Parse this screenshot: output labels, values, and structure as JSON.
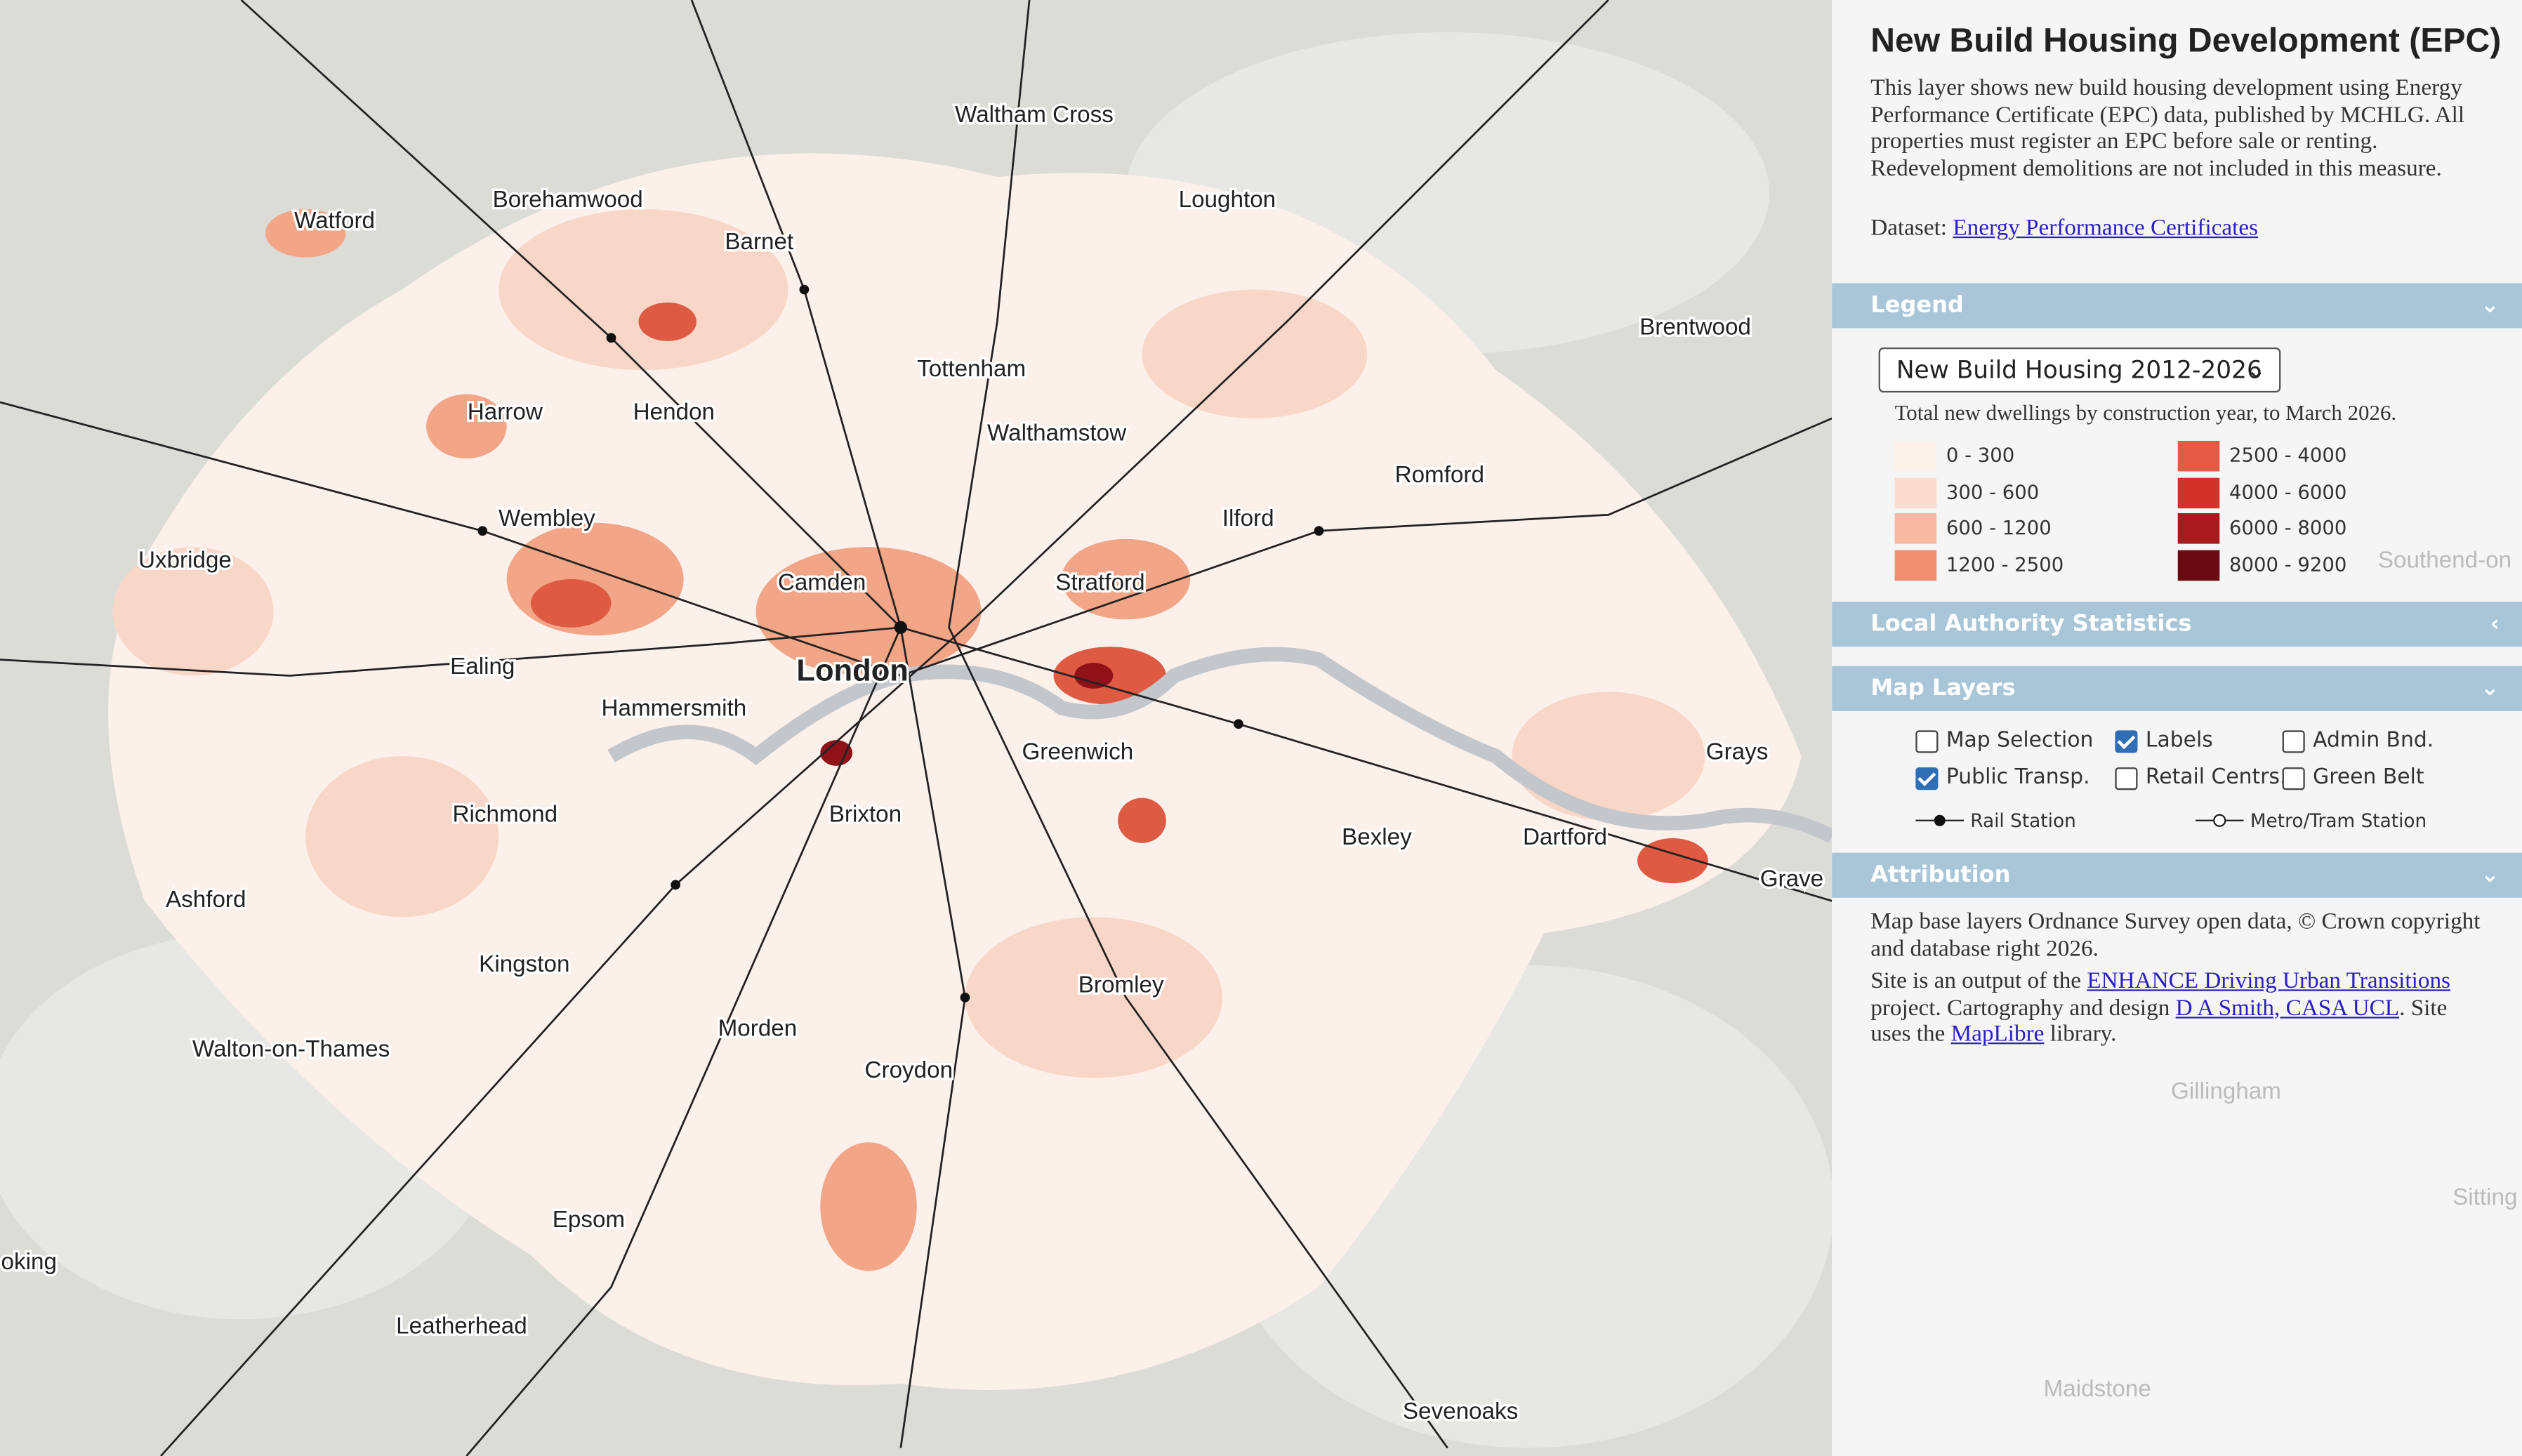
{
  "header": {
    "title": "New Build Housing Development (EPC)",
    "description": "This layer shows new build housing development using Energy Performance Certificate (EPC) data, published by MCHLG. All properties must register an EPC before sale or renting. Redevelopment demolitions are not included in this measure.",
    "dataset_label": "Dataset:",
    "dataset_link": "Energy Performance Certificates"
  },
  "sections": {
    "legend": "Legend",
    "local_authority": "Local Authority Statistics",
    "map_layers": "Map Layers",
    "attribution": "Attribution"
  },
  "legend": {
    "selected": "New Build Housing 2012-2026",
    "subtitle": "Total new dwellings by construction year, to March 2026.",
    "classes": [
      {
        "label": "0 - 300",
        "color": "#fdf1ec"
      },
      {
        "label": "300 - 600",
        "color": "#fbdccf"
      },
      {
        "label": "600 - 1200",
        "color": "#f7b9a2"
      },
      {
        "label": "1200 - 2500",
        "color": "#f08f70"
      },
      {
        "label": "2500 - 4000",
        "color": "#e45a44"
      },
      {
        "label": "4000 - 6000",
        "color": "#d3322b"
      },
      {
        "label": "6000 - 8000",
        "color": "#a91a1e"
      },
      {
        "label": "8000 - 9200",
        "color": "#6b0a12"
      }
    ]
  },
  "layers": [
    {
      "label": "Map Selection",
      "checked": false
    },
    {
      "label": "Labels",
      "checked": true
    },
    {
      "label": "Admin Bnd.",
      "checked": false
    },
    {
      "label": "Public Transp.",
      "checked": true
    },
    {
      "label": "Retail Centrs.",
      "checked": false
    },
    {
      "label": "Green Belt",
      "checked": false
    }
  ],
  "station_keys": [
    "Rail Station",
    "Metro/Tram Station"
  ],
  "attribution": {
    "p1": "Map base layers Ordnance Survey open data, © Crown copyright and database right 2026.",
    "p2": [
      {
        "text": "Site is an output of the ",
        "link": false
      },
      {
        "text": "ENHANCE Driving Urban Transitions",
        "link": true
      },
      {
        "text": " project. Cartography and design ",
        "link": false
      },
      {
        "text": "D A Smith, CASA UCL",
        "link": true
      },
      {
        "text": ". Site uses the ",
        "link": false
      },
      {
        "text": "MapLibre",
        "link": true
      },
      {
        "text": " library.",
        "link": false
      }
    ]
  },
  "map_labels": [
    "Waltham Cross",
    "Watford",
    "Borehamwood",
    "Barnet",
    "Loughton",
    "Brentwood",
    "Tottenham",
    "Harrow",
    "Hendon",
    "Walthamstow",
    "Romford",
    "Wembley",
    "Ilford",
    "Uxbridge",
    "Camden",
    "Stratford",
    "Ealing",
    "London",
    "Hammersmith",
    "Greenwich",
    "Grays",
    "Richmond",
    "Brixton",
    "Bexley",
    "Dartford",
    "Grave",
    "Ashford",
    "Kingston",
    "Bromley",
    "Morden",
    "Walton-on-Thames",
    "Croydon",
    "Epsom",
    "oking",
    "Leatherhead",
    "Sevenoaks",
    "Southend-on",
    "Gillingham",
    "Sitting",
    "Maidstone"
  ]
}
